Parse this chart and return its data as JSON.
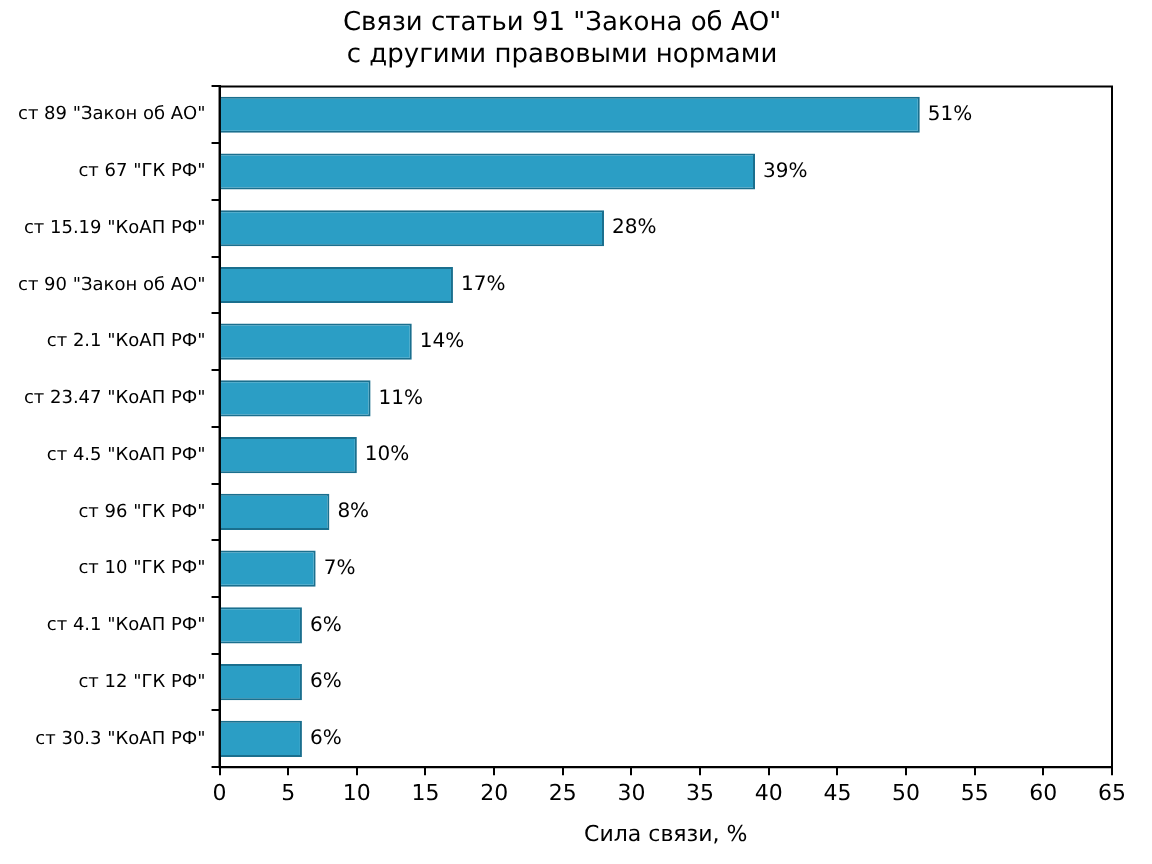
{
  "chart_data": {
    "type": "bar",
    "orientation": "horizontal",
    "title": "Связи статьи 91 \"Закона об АО\"\nс другими правовыми нормами",
    "xlabel": "Сила связи, %",
    "categories": [
      "ст 89 \"Закон об АО\"",
      "ст 67 \"ГК РФ\"",
      "ст 15.19 \"КоАП РФ\"",
      "ст 90 \"Закон об АО\"",
      "ст 2.1 \"КоАП РФ\"",
      "ст 23.47 \"КоАП РФ\"",
      "ст 4.5 \"КоАП РФ\"",
      "ст 96 \"ГК РФ\"",
      "ст 10 \"ГК РФ\"",
      "ст 4.1 \"КоАП РФ\"",
      "ст 12 \"ГК РФ\"",
      "ст 30.3 \"КоАП РФ\""
    ],
    "values": [
      51,
      39,
      28,
      17,
      14,
      11,
      10,
      8,
      7,
      6,
      6,
      6
    ],
    "value_labels": [
      "51%",
      "39%",
      "28%",
      "17%",
      "14%",
      "11%",
      "10%",
      "8%",
      "7%",
      "6%",
      "6%",
      "6%"
    ],
    "color": "#2b9ec5",
    "xlim": [
      0,
      65
    ],
    "xticks": [
      0,
      5,
      10,
      15,
      20,
      25,
      30,
      35,
      40,
      45,
      50,
      55,
      60,
      65
    ],
    "grid": false,
    "legend": false
  }
}
